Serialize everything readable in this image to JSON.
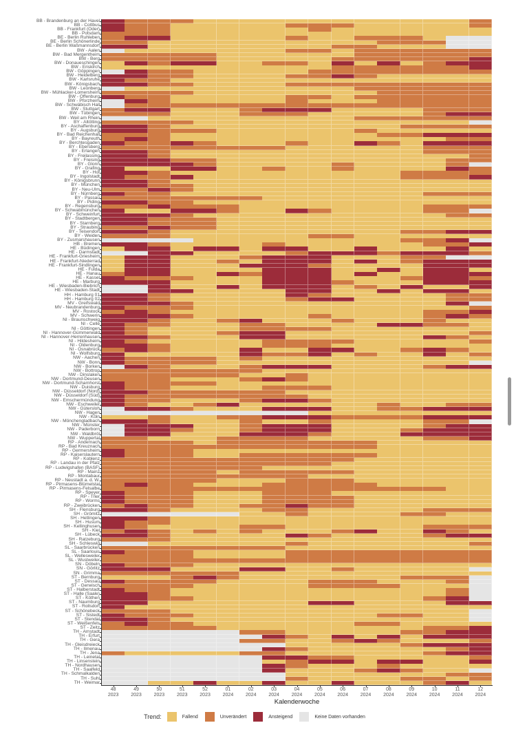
{
  "chart_data": {
    "type": "heatmap",
    "xlabel": "Kalenderwoche",
    "ylabel": "",
    "x_categories": [
      {
        "week": "48",
        "year": "2023"
      },
      {
        "week": "49",
        "year": "2023"
      },
      {
        "week": "50",
        "year": "2023"
      },
      {
        "week": "51",
        "year": "2023"
      },
      {
        "week": "52",
        "year": "2023"
      },
      {
        "week": "01",
        "year": "2024"
      },
      {
        "week": "02",
        "year": "2024"
      },
      {
        "week": "03",
        "year": "2024"
      },
      {
        "week": "04",
        "year": "2024"
      },
      {
        "week": "05",
        "year": "2024"
      },
      {
        "week": "06",
        "year": "2024"
      },
      {
        "week": "07",
        "year": "2024"
      },
      {
        "week": "08",
        "year": "2024"
      },
      {
        "week": "09",
        "year": "2024"
      },
      {
        "week": "10",
        "year": "2024"
      },
      {
        "week": "11",
        "year": "2024"
      },
      {
        "week": "12",
        "year": "2024"
      }
    ],
    "legend": {
      "title": "Trend:",
      "position": "bottom",
      "entries": [
        {
          "code": "F",
          "label": "Fallend",
          "color": "#EBC46C"
        },
        {
          "code": "U",
          "label": "Unverändert",
          "color": "#CF7B45"
        },
        {
          "code": "A",
          "label": "Ansteigend",
          "color": "#9C2C3A"
        },
        {
          "code": "N",
          "label": "Keine Daten vorhanden",
          "color": "#E5E5E5"
        }
      ]
    },
    "rows": [
      {
        "label": "BB - Brandenburg an der Havel",
        "trend": "AUUUFFFFFFFFFFFFU"
      },
      {
        "label": "BB - Cottbus",
        "trend": "AUUFFFFFUUUFFFFFU"
      },
      {
        "label": "BB - Frankfurt (Oder)",
        "trend": "AUUFFFFFFUFFFFFFF"
      },
      {
        "label": "BB - Potsdam",
        "trend": "UUUFFFFFFFFFFFFFF"
      },
      {
        "label": "BE - Berlin Ruhleben",
        "trend": "UAAFFFFFUFFUUUFNN"
      },
      {
        "label": "BE - Berlin Schönerlinde",
        "trend": "UUFFFFFFFFFFUUUNN"
      },
      {
        "label": "BE - Berlin Waßmannsdorf",
        "trend": "AAFFFFFFFFUUFFFNN"
      },
      {
        "label": "BW - Aalen",
        "trend": "NFFFFFFFUUFUUUUUU"
      },
      {
        "label": "BW - Bad Mergentheim",
        "trend": "UUUUUFFFFFFUUUUUU"
      },
      {
        "label": "BW - Berg",
        "trend": "UUUUUFFFFFUUUUUUA"
      },
      {
        "label": "BW - Donaueschingen",
        "trend": "FAUAAFFUUFAFAFUAA"
      },
      {
        "label": "BW - Eriskirch",
        "trend": "FFFFFFFFFFUUUUUUA"
      },
      {
        "label": "BW - Göppingen",
        "trend": "NAUUFFFFFUUUUUUUU"
      },
      {
        "label": "BW - Heidelberg",
        "trend": "AAUUFFFFUUAUFFFFF"
      },
      {
        "label": "BW - Karlsruhe",
        "trend": "AUUFFFFFFFFFFFFFF"
      },
      {
        "label": "BW - Königsbach",
        "trend": "AAUUFFFFUUUUUUUUU"
      },
      {
        "label": "BW - Leonberg",
        "trend": "NFFFFFFFFFFUUUUUU"
      },
      {
        "label": "BW - Mühlacker-Lomersheim",
        "trend": "UUUUFFFFFFFFUUUUU"
      },
      {
        "label": "BW - Offenburg",
        "trend": "AUUFFFFFUUFUUUUUU"
      },
      {
        "label": "BW - Pforzheim",
        "trend": "NAUFFFFFUFFFUUUUU"
      },
      {
        "label": "BW - Schwäbisch Hall",
        "trend": "NUUUUUUUUUUUUUUUU"
      },
      {
        "label": "BW - Stuttgart",
        "trend": "UAAFFFUAAAFFFFUUU"
      },
      {
        "label": "BW - Tübingen",
        "trend": "UUUFFFUUUFFFFFUAA"
      },
      {
        "label": "BW - Weil am Rhein",
        "trend": "NNFFFFFFFFFUUUUUU"
      },
      {
        "label": "BY - Altötting",
        "trend": "UUUUFFFFFFFFFFFFN"
      },
      {
        "label": "BY - Aschaffenburg",
        "trend": "AAUFFFFFFFFFFUUUU"
      },
      {
        "label": "BY - Augsburg",
        "trend": "AAUUUFFFFFFUFFFFF"
      },
      {
        "label": "BY - Bad Reichenhall",
        "trend": "UUUFFFFFFFFFUUAAA"
      },
      {
        "label": "BY - Bayreuth",
        "trend": "UAUFFFFFFFFFFFFUU"
      },
      {
        "label": "BY - Berchtesgaden",
        "trend": "AUUAUFFFUFFAUFAAA"
      },
      {
        "label": "BY - Ebersberg",
        "trend": "UUUUUUUUFFFFFFUUU"
      },
      {
        "label": "BY - Erlangen",
        "trend": "AAUFFFFFFFFFFFUUU"
      },
      {
        "label": "BY - Freilassing",
        "trend": "AAUFFFFFFFFFFFFFU"
      },
      {
        "label": "BY - Freising",
        "trend": "AAAUUFFFFFFFFFFUU"
      },
      {
        "label": "BY - Glonn",
        "trend": "AAAAUFFFFFUFFFFUN"
      },
      {
        "label": "BY - Grafing",
        "trend": "AFFAAFFUFFUFFFFAU"
      },
      {
        "label": "BY - Hof",
        "trend": "AAUFFFFFFFFFFUUUU"
      },
      {
        "label": "BY - Ingolstadt",
        "trend": "AUUAFFFFFFFFFUUUA"
      },
      {
        "label": "BY - Königsbrunn",
        "trend": "AAUFFFFFFFFFFFFFF"
      },
      {
        "label": "BY - München",
        "trend": "AAUUFFFFFFFFFFFFF"
      },
      {
        "label": "BY - Neu-Ulm",
        "trend": "UUAUFFFFFFFFFFFFF"
      },
      {
        "label": "BY - Nürnberg",
        "trend": "AUUFFFFFFFFFFFUUU"
      },
      {
        "label": "BY - Passau",
        "trend": "UUUUUUUFFFFFFFFFF"
      },
      {
        "label": "BY - Piding",
        "trend": "AAUUFFFFFFFFFFFFF"
      },
      {
        "label": "BY - Regensburg",
        "trend": "UUAUUUFFFFFFFFUUU"
      },
      {
        "label": "BY - Schwabmünchen",
        "trend": "AFFAAUFFAUFFFFUUN"
      },
      {
        "label": "BY - Schweinfurt",
        "trend": "AAAUFFFFFFFFFFFUU"
      },
      {
        "label": "BY - Stadtbergen",
        "trend": "AAUUUFFFFFFFFFFFF"
      },
      {
        "label": "BY - Starnberg",
        "trend": "AAUUUFFFFFFFFFFFF"
      },
      {
        "label": "BY - Straubing",
        "trend": "UUAUUFFFFFFFFFFFF"
      },
      {
        "label": "BY - Teisendorf",
        "trend": "AAUFFFFFFFFFFUUAA"
      },
      {
        "label": "BY - Weiden",
        "trend": "UUUFFFFFFUUFFFFFF"
      },
      {
        "label": "BY - Zusmarshausen",
        "trend": "NNNNFFFFFFFFFUUAN"
      },
      {
        "label": "HB - Bremen",
        "trend": "AAUFFFFUFFFFFFUUA"
      },
      {
        "label": "HE - Büdingen",
        "trend": "FAAFAAFAAFFAFFFAF"
      },
      {
        "label": "HE - Darmstadt",
        "trend": "NNAAFFFFUAAAUAAAU"
      },
      {
        "label": "HE - Frankfurt-Griesheim",
        "trend": "FAAFFFUAAAFFFUUNN"
      },
      {
        "label": "HE - Frankfurt-Niederrad",
        "trend": "FAAFFUFAAAFAFUAAA"
      },
      {
        "label": "HE - Frankfurt-Sindlingen",
        "trend": "FAAFFFAAAUFFFFAAA"
      },
      {
        "label": "HE - Fulda",
        "trend": "FAAFFFFAAAFFAFAAF"
      },
      {
        "label": "HE - Hanau",
        "trend": "UAAFFAUAAAFAFFAAA"
      },
      {
        "label": "HE - Kassel",
        "trend": "AUUUFFFAAAFFFUAAU"
      },
      {
        "label": "HE - Marburg",
        "trend": "AAAFFFFAAAUFFFAAA"
      },
      {
        "label": "HE - Wiesbaden-Biebrich",
        "trend": "NNAFFAFAAAFUFAFFA"
      },
      {
        "label": "HE - Wiesbaden-Stadt",
        "trend": "NNAAFFFFAAFFAFAAF"
      },
      {
        "label": "HH - Hamburg 01",
        "trend": "AAUFFFFFAUFFFFFUU"
      },
      {
        "label": "HH - Hamburg 02",
        "trend": "AAUFFFFFUAAFFFFUU"
      },
      {
        "label": "MV - Greifswald",
        "trend": "AAAUFFFFFFFFFFFAN"
      },
      {
        "label": "MV - Neubrandenburg",
        "trend": "AUUUFFFFFFFFFFFFU"
      },
      {
        "label": "MV - Rostock",
        "trend": "UAUFFFFFFFFFFFUUA"
      },
      {
        "label": "MV - Schwerin",
        "trend": "AAAUFFFFFUFFFFUAU"
      },
      {
        "label": "NI - Braunschweig",
        "trend": "AAUFFUAFFFUFFFUFF"
      },
      {
        "label": "NI - Celle",
        "trend": "AUUFFFUUFFFFAAUUF"
      },
      {
        "label": "NI - Göttingen",
        "trend": "AUFFFFUUUUFFFFFFF"
      },
      {
        "label": "NI - Hannover-Gümmerwald",
        "trend": "AUFFFUAAFFFFFFFFU"
      },
      {
        "label": "NI - Hannover-Herrenhausen",
        "trend": "AAUFFFAAFFFFFFAUF"
      },
      {
        "label": "NI - Hildesheim",
        "trend": "AUFFFFFUUUUFFFFFU"
      },
      {
        "label": "NI - Oldenburg",
        "trend": "AAUFFFFUUUFFFFFFF"
      },
      {
        "label": "NI - Osnabrück",
        "trend": "UAUFFFAFFAAFFUAUF"
      },
      {
        "label": "NI - Wolfsburg",
        "trend": "AFFFFFAUUAFUFFAFU"
      },
      {
        "label": "NW - Aachen",
        "trend": "AUUUUFUFFFFFFFFFF"
      },
      {
        "label": "NW - Bonn",
        "trend": "AUUUUFFFFFFFFFFFN"
      },
      {
        "label": "NW - Borken",
        "trend": "NAUFFFUAAAFFFFUAA"
      },
      {
        "label": "NW - Bottrop",
        "trend": "UUUUUUUFFFFFFFFFF"
      },
      {
        "label": "NW - Dinslaken",
        "trend": "UUUUUUFFUFFFFFFFF"
      },
      {
        "label": "NW - Dortmund-Deusen",
        "trend": "UUUFFFUAUFFFFFFFF"
      },
      {
        "label": "NW - Dortmund-Scharnhorst",
        "trend": "AUUUUFFFFFFFFFFFF"
      },
      {
        "label": "NW - Duisburg",
        "trend": "AUUFFFFUUUFFFFFFF"
      },
      {
        "label": "NW - Düsseldorf (Nord)",
        "trend": "AAUUUUUUFFFFFFFFF"
      },
      {
        "label": "NW - Düsseldorf (Süd)",
        "trend": "AUUUUUUUUFFFFFFFF"
      },
      {
        "label": "NW - Emschermündung",
        "trend": "AUUFFFUAAUFFFFFFF"
      },
      {
        "label": "NW - Eschweiler",
        "trend": "AUFFUAFFFFFFUFFUU"
      },
      {
        "label": "NW - Gütersloh",
        "trend": "NAAUFFFAAAFFUUAAA"
      },
      {
        "label": "NW - Hagen",
        "trend": "NNNNNNNNNFFFFFFFF"
      },
      {
        "label": "NW - Köln",
        "trend": "FFUFFUUAAAUUUUAAA"
      },
      {
        "label": "NW - Mönchengladbach",
        "trend": "AAUFFFUFFUFFFFUUN"
      },
      {
        "label": "NW - Münster",
        "trend": "NAAAFFUAAAFFFFUAA"
      },
      {
        "label": "NW - Paderborn",
        "trend": "NAAUFFUAAAFFFUAAA"
      },
      {
        "label": "NW - Waldbröl",
        "trend": "NAAFFFAAAUFFFAAAA"
      },
      {
        "label": "NW - Wuppertal",
        "trend": "UUFFFUUUUFFFFFUUA"
      },
      {
        "label": "RP - Andernach",
        "trend": "UUUUFUUUUUUUFFFFF"
      },
      {
        "label": "RP - Bad Kreuznach",
        "trend": "UUUUUUUUUUUUFFFFF"
      },
      {
        "label": "RP - Germersheim",
        "trend": "AUUUFFFFFFFFFFFFF"
      },
      {
        "label": "RP - Kaiserslautern",
        "trend": "AUUUFFUUUUUUFFFFF"
      },
      {
        "label": "RP - Koblenz",
        "trend": "UUUUUUUUUUUFFFFFF"
      },
      {
        "label": "RP - Landau in der Pfalz",
        "trend": "UUUUUUUUUUFFFFFFF"
      },
      {
        "label": "RP - Ludwigshafen (BASF)",
        "trend": "UUUUUUUFFFFFFFFFF"
      },
      {
        "label": "RP - Mainz",
        "trend": "UUUUUFUUUUUFFFFFF"
      },
      {
        "label": "RP - Montabaur",
        "trend": "UUUUUUUUUFFFFFFFF"
      },
      {
        "label": "RP - Neustadt a. d. W.",
        "trend": "UUUUUFFFUUUFFFFFF"
      },
      {
        "label": "RP - Pirmasens-Blümelstal",
        "trend": "UAUUFFFUUUUUFFFFF"
      },
      {
        "label": "RP - Pirmasens-Felsalbe",
        "trend": "UUUUUUUUUUUUUUUFF"
      },
      {
        "label": "RP - Speyer",
        "trend": "AUUUFFFUUUFFFFFFF"
      },
      {
        "label": "RP - Trier",
        "trend": "AUUUFFFUUUUFFFFFF"
      },
      {
        "label": "RP - Worms",
        "trend": "AUUUFFFUUUUFFFFFF"
      },
      {
        "label": "RP - Zweibrücken",
        "trend": "UAUUFFUUAUUFFFFFF"
      },
      {
        "label": "SH - Flensburg",
        "trend": "AAUFFFFUUFFFFFUUU"
      },
      {
        "label": "SH - Grömitz",
        "trend": "NNNNNNFFUFFFFUUFF"
      },
      {
        "label": "SH - Hetlingen",
        "trend": "AAUFFFFFFFFFFFFFF"
      },
      {
        "label": "SH - Husum",
        "trend": "AUUFFFFFFFFFFFFFF"
      },
      {
        "label": "SH - Kellinghusen",
        "trend": "AUFFFFUUFFFFFFUUU"
      },
      {
        "label": "SH - Kiel",
        "trend": "UAUFUFUFFFUAFFAUF"
      },
      {
        "label": "SH - Lübeck",
        "trend": "AAUFFFFFAUFFFFUAA"
      },
      {
        "label": "SH - Ratzeburg",
        "trend": "UUUFFFFFFFFFFFFFF"
      },
      {
        "label": "SH - Schleswig",
        "trend": "NNFFFFFFUFFFFFFFU"
      },
      {
        "label": "SL - Saarbrücken",
        "trend": "UUUUUUUUFFFFFFFFF"
      },
      {
        "label": "SL - Saarlouis",
        "trend": "AUUUFFFFUUUUUUUUU"
      },
      {
        "label": "SL - Wellesweiler",
        "trend": "UUUUFFFFUUUUUUUUU"
      },
      {
        "label": "SL - Wustweiler",
        "trend": "UUUUUUUUUUUUUUUUU"
      },
      {
        "label": "SN - Döbeln",
        "trend": "AUUUFFFFFFFFFFFFF"
      },
      {
        "label": "SN - Görlitz",
        "trend": "AAAFFFAAFFUFFFFFN"
      },
      {
        "label": "SN - Grimma",
        "trend": "UUUUUUFFFFFFFFFFF"
      },
      {
        "label": "ST - Bernburg",
        "trend": "FFFUAUFFFFFFFUUUN"
      },
      {
        "label": "ST - Dessau",
        "trend": "AUUUUFFFFUUUFFFUN"
      },
      {
        "label": "ST - Gerwisch",
        "trend": "UUUUFFFFFUUUUFFFN"
      },
      {
        "label": "ST - Halberstadt",
        "trend": "AUUFFFFFFFFFFFFUN"
      },
      {
        "label": "ST - Halle (Saale)",
        "trend": "AAUFFFFFFFFFFFFUN"
      },
      {
        "label": "ST - Köthen",
        "trend": "AAUUFFFFFFFFFFUAN"
      },
      {
        "label": "ST - Naumburg",
        "trend": "AAFFFFFFFAAFFFFAA"
      },
      {
        "label": "ST - Rollsdorf",
        "trend": "AFFFFFFFFFFFFFFFF"
      },
      {
        "label": "ST - Schönebeck",
        "trend": "UUUFFFFFFFFFFFFFN"
      },
      {
        "label": "ST - Sistedt",
        "trend": "AUUUFFFFFFFFUUFFN"
      },
      {
        "label": "ST - Stendal",
        "trend": "AAUFFFFFFFFFFFFFN"
      },
      {
        "label": "ST - Weißenfels",
        "trend": "UAUUFFFFFFFUUFFFF"
      },
      {
        "label": "ST - Zeitz",
        "trend": "UUUUUFFFFFFFFFUUA"
      },
      {
        "label": "TH - Arnstadt",
        "trend": "NNNNNNUUFFFFFUUAA"
      },
      {
        "label": "TH - Erfurt",
        "trend": "NNNNNNNAUFAFAFAAA"
      },
      {
        "label": "TH - Gera",
        "trend": "NNNNNNUUFFUAUFFFU"
      },
      {
        "label": "TH - Gleisdreieck",
        "trend": "NNNNNNNNFFFFFUAAA"
      },
      {
        "label": "TH - Ilmenau",
        "trend": "NNNNNNNAUFFFFFFUA"
      },
      {
        "label": "TH - Jena",
        "trend": "UFFFFFUUFFFFFFUAA"
      },
      {
        "label": "TH - Leinetal",
        "trend": "NNNNNNNAAUUFFFFFU"
      },
      {
        "label": "TH - Linsenstein",
        "trend": "NNNNNNNFUAAFAAFFA"
      },
      {
        "label": "TH - Nordhausen",
        "trend": "NNNNNNNAUFFFUFFFF"
      },
      {
        "label": "TH - Saalfeld",
        "trend": "NNNNNNNAFFFUAUFFN"
      },
      {
        "label": "TH - Schmalkalden",
        "trend": "NNNNNNNNFFFFFFFUU"
      },
      {
        "label": "TH - Suhl",
        "trend": "NNNNNNNNUFFFFUUFU"
      },
      {
        "label": "TH - Weimar",
        "trend": "NNFFAFFAFFAFFFUAF"
      }
    ]
  }
}
